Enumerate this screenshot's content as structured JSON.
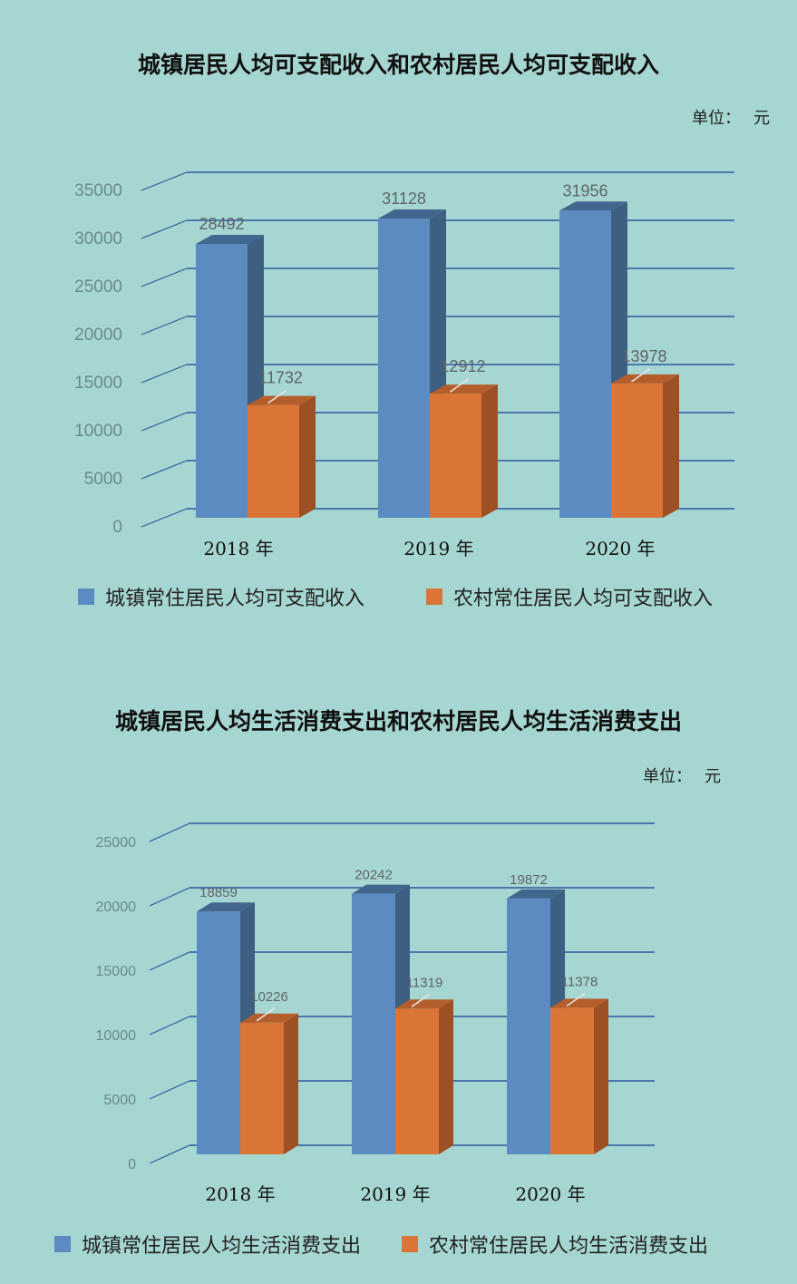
{
  "colors": {
    "urban": "#5b8bc0",
    "urban_side": "#3d5f82",
    "urban_top": "#41678e",
    "rural": "#db7537",
    "rural_side": "#9c5024",
    "rural_top": "#b35e2b",
    "grid": "#2f57a0"
  },
  "charts": [
    {
      "title": "城镇居民人均可支配收入和农村居民人均可支配收入",
      "unit_label": "单位：",
      "unit_value": "元",
      "legend": [
        "城镇常住居民人均可支配收入",
        "农村常住居民人均可支配收入"
      ]
    },
    {
      "title": "城镇居民人均生活消费支出和农村居民人均生活消费支出",
      "unit_label": "单位：",
      "unit_value": "元",
      "legend": [
        "城镇常住居民人均生活消费支出",
        "农村常住居民人均生活消费支出"
      ]
    }
  ],
  "chart_data": [
    {
      "type": "bar",
      "title": "城镇居民人均可支配收入和农村居民人均可支配收入",
      "categories": [
        "2018 年",
        "2019 年",
        "2020 年"
      ],
      "series": [
        {
          "name": "城镇常住居民人均可支配收入",
          "values": [
            28492,
            31128,
            31956
          ]
        },
        {
          "name": "农村常住居民人均可支配收入",
          "values": [
            11732,
            12912,
            13978
          ]
        }
      ],
      "yticks": [
        "0",
        "5000",
        "10000",
        "15000",
        "20000",
        "25000",
        "30000",
        "35000"
      ],
      "ylim": [
        0,
        35000
      ],
      "grid": true,
      "legend": "bottom"
    },
    {
      "type": "bar",
      "title": "城镇居民人均生活消费支出和农村居民人均生活消费支出",
      "categories": [
        "2018 年",
        "2019 年",
        "2020 年"
      ],
      "series": [
        {
          "name": "城镇常住居民人均生活消费支出",
          "values": [
            18859,
            20242,
            19872
          ]
        },
        {
          "name": "农村常住居民人均生活消费支出",
          "values": [
            10226,
            11319,
            11378
          ]
        }
      ],
      "yticks": [
        "0",
        "5000",
        "10000",
        "15000",
        "20000",
        "25000"
      ],
      "ylim": [
        0,
        25000
      ],
      "grid": true,
      "legend": "bottom"
    }
  ]
}
